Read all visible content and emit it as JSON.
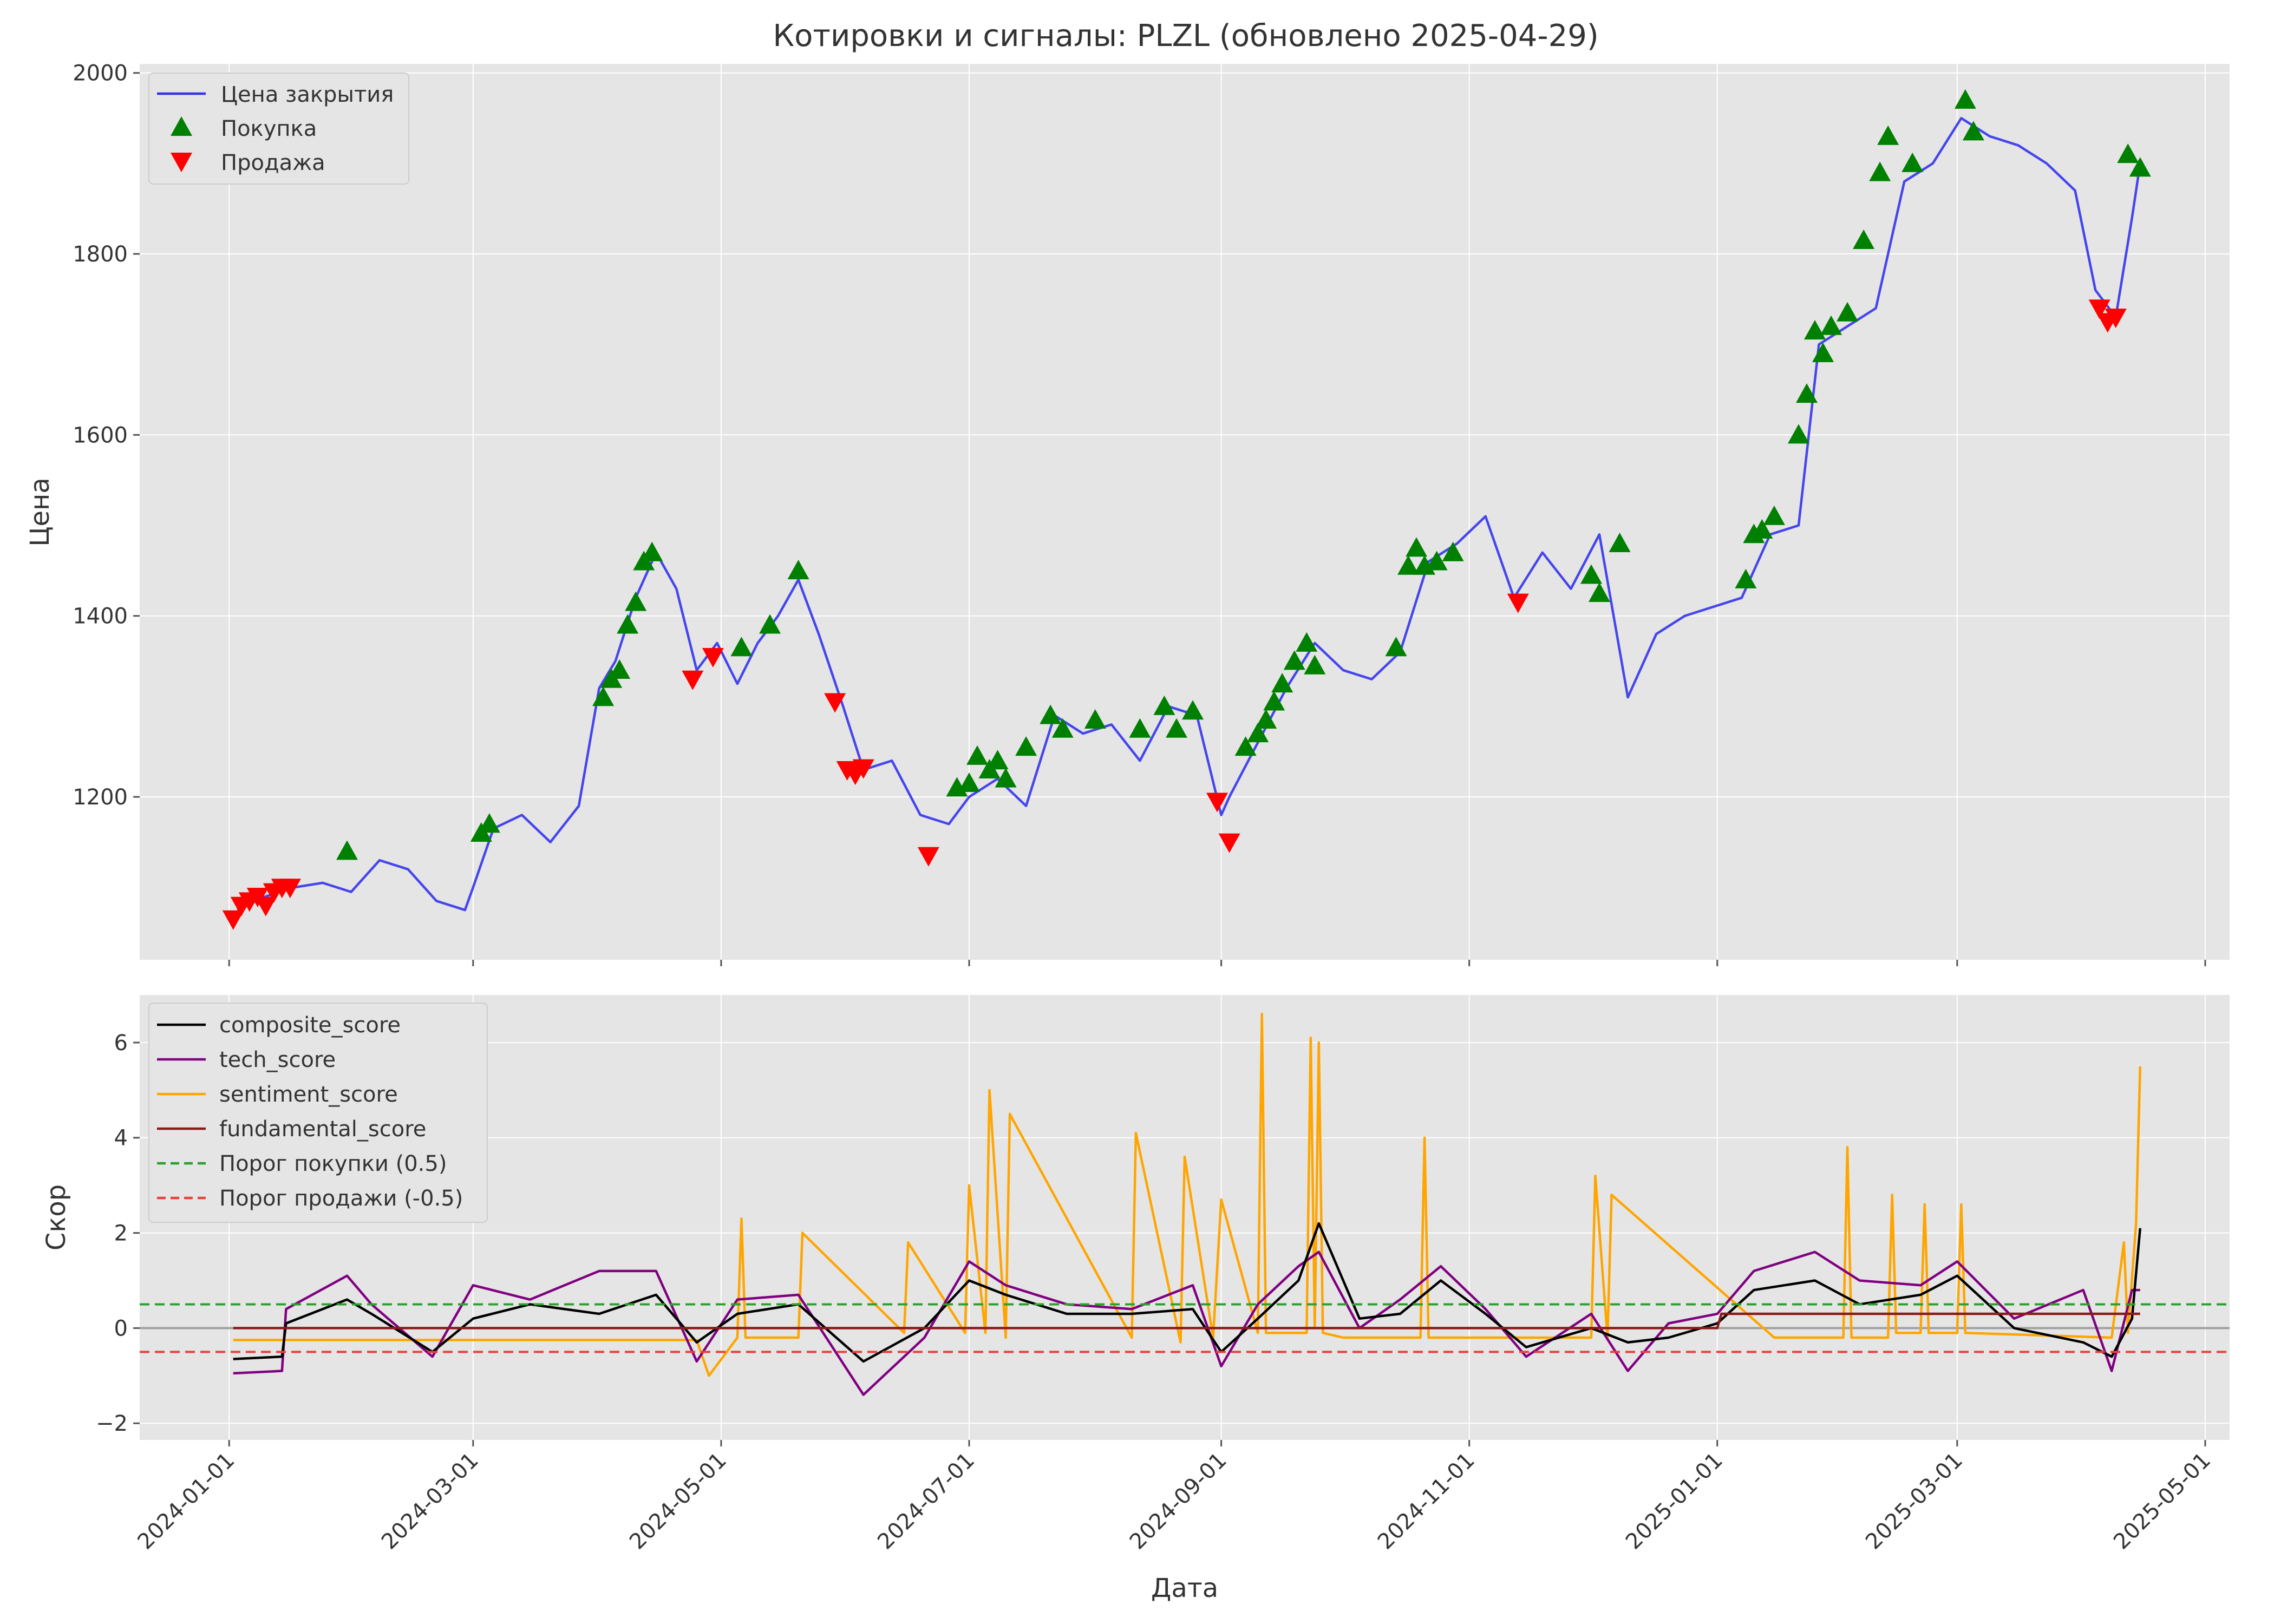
{
  "chart_data": [
    {
      "type": "line",
      "title": "Котировки и сигналы: PLZL (обновлено 2025-04-29)",
      "xlabel": "",
      "ylabel": "Цена",
      "ylim": [
        1020,
        2010
      ],
      "yticks": [
        1200,
        1400,
        1600,
        1800,
        2000
      ],
      "grid": true,
      "legend": "top-left",
      "colors": {
        "price": "#3333ee",
        "buy": "#008000",
        "sell": "#ff0000",
        "background": "#e5e5e5"
      },
      "series": [
        {
          "name": "Цена закрытия",
          "x": [
            "2024-01-03",
            "2024-01-10",
            "2024-01-17",
            "2024-01-24",
            "2024-01-31",
            "2024-02-07",
            "2024-02-14",
            "2024-02-21",
            "2024-02-28",
            "2024-03-01",
            "2024-03-06",
            "2024-03-13",
            "2024-03-20",
            "2024-03-27",
            "2024-04-01",
            "2024-04-05",
            "2024-04-10",
            "2024-04-15",
            "2024-04-20",
            "2024-04-25",
            "2024-04-30",
            "2024-05-05",
            "2024-05-10",
            "2024-05-15",
            "2024-05-20",
            "2024-05-25",
            "2024-05-31",
            "2024-06-05",
            "2024-06-12",
            "2024-06-19",
            "2024-06-26",
            "2024-07-01",
            "2024-07-08",
            "2024-07-15",
            "2024-07-22",
            "2024-07-29",
            "2024-08-05",
            "2024-08-12",
            "2024-08-19",
            "2024-08-26",
            "2024-09-01",
            "2024-09-03",
            "2024-09-10",
            "2024-09-17",
            "2024-09-24",
            "2024-10-01",
            "2024-10-08",
            "2024-10-15",
            "2024-10-22",
            "2024-10-29",
            "2024-11-05",
            "2024-11-12",
            "2024-11-19",
            "2024-11-26",
            "2024-12-03",
            "2024-12-10",
            "2024-12-17",
            "2024-12-24",
            "2024-12-31",
            "2025-01-07",
            "2025-01-14",
            "2025-01-21",
            "2025-01-26",
            "2025-02-02",
            "2025-02-09",
            "2025-02-16",
            "2025-02-23",
            "2025-03-02",
            "2025-03-09",
            "2025-03-16",
            "2025-03-23",
            "2025-03-30",
            "2025-04-04",
            "2025-04-09",
            "2025-04-13",
            "2025-04-15"
          ],
          "y": [
            1075,
            1090,
            1100,
            1105,
            1095,
            1130,
            1120,
            1085,
            1075,
            1100,
            1165,
            1180,
            1150,
            1190,
            1320,
            1350,
            1420,
            1470,
            1430,
            1340,
            1370,
            1325,
            1370,
            1400,
            1440,
            1380,
            1300,
            1230,
            1240,
            1180,
            1170,
            1200,
            1220,
            1190,
            1290,
            1270,
            1280,
            1240,
            1300,
            1290,
            1180,
            1200,
            1260,
            1320,
            1370,
            1340,
            1330,
            1360,
            1460,
            1480,
            1510,
            1420,
            1470,
            1430,
            1490,
            1310,
            1380,
            1400,
            1410,
            1420,
            1490,
            1500,
            1700,
            1720,
            1740,
            1880,
            1900,
            1950,
            1930,
            1920,
            1900,
            1870,
            1760,
            1730,
            1840,
            1900
          ]
        },
        {
          "name": "Покупка",
          "x": [
            "2024-01-30",
            "2024-03-03",
            "2024-03-05",
            "2024-04-02",
            "2024-04-04",
            "2024-04-06",
            "2024-04-08",
            "2024-04-10",
            "2024-04-12",
            "2024-04-14",
            "2024-05-06",
            "2024-05-13",
            "2024-05-20",
            "2024-06-28",
            "2024-07-01",
            "2024-07-03",
            "2024-07-06",
            "2024-07-08",
            "2024-07-10",
            "2024-07-15",
            "2024-07-21",
            "2024-07-24",
            "2024-08-01",
            "2024-08-12",
            "2024-08-18",
            "2024-08-21",
            "2024-08-25",
            "2024-09-07",
            "2024-09-10",
            "2024-09-12",
            "2024-09-14",
            "2024-09-16",
            "2024-09-19",
            "2024-09-22",
            "2024-09-24",
            "2024-10-14",
            "2024-10-17",
            "2024-10-19",
            "2024-10-21",
            "2024-10-24",
            "2024-10-28",
            "2024-12-01",
            "2024-12-03",
            "2024-12-08",
            "2025-01-08",
            "2025-01-10",
            "2025-01-12",
            "2025-01-15",
            "2025-01-21",
            "2025-01-23",
            "2025-01-25",
            "2025-01-27",
            "2025-01-29",
            "2025-02-02",
            "2025-02-06",
            "2025-02-10",
            "2025-02-12",
            "2025-02-18",
            "2025-03-03",
            "2025-03-05",
            "2025-04-12",
            "2025-04-15"
          ],
          "y": [
            1140,
            1160,
            1170,
            1310,
            1330,
            1340,
            1390,
            1415,
            1460,
            1470,
            1365,
            1390,
            1450,
            1210,
            1215,
            1245,
            1230,
            1240,
            1220,
            1255,
            1290,
            1275,
            1285,
            1275,
            1300,
            1275,
            1295,
            1255,
            1270,
            1285,
            1305,
            1325,
            1350,
            1370,
            1345,
            1365,
            1455,
            1475,
            1455,
            1460,
            1470,
            1445,
            1425,
            1480,
            1440,
            1490,
            1495,
            1510,
            1600,
            1645,
            1715,
            1690,
            1720,
            1735,
            1815,
            1890,
            1930,
            1900,
            1970,
            1935,
            1910,
            1895
          ]
        },
        {
          "name": "Продажа",
          "x": [
            "2024-01-02",
            "2024-01-04",
            "2024-01-06",
            "2024-01-08",
            "2024-01-10",
            "2024-01-12",
            "2024-01-14",
            "2024-01-16",
            "2024-04-24",
            "2024-04-29",
            "2024-05-29",
            "2024-06-01",
            "2024-06-03",
            "2024-06-05",
            "2024-06-21",
            "2024-08-31",
            "2024-09-03",
            "2024-11-13",
            "2025-04-05",
            "2025-04-07",
            "2025-04-09"
          ],
          "y": [
            1065,
            1080,
            1085,
            1090,
            1080,
            1095,
            1100,
            1100,
            1330,
            1355,
            1305,
            1230,
            1225,
            1232,
            1135,
            1195,
            1150,
            1415,
            1740,
            1725,
            1730
          ]
        }
      ]
    },
    {
      "type": "line",
      "title": "",
      "xlabel": "Дата",
      "ylabel": "Скор",
      "ylim": [
        -2.35,
        7.0
      ],
      "yticks": [
        -2,
        0,
        2,
        4,
        6
      ],
      "xticks": [
        "2024-01-01",
        "2024-03-01",
        "2024-05-01",
        "2024-07-01",
        "2024-09-01",
        "2024-11-01",
        "2025-01-01",
        "2025-03-01",
        "2025-05-01"
      ],
      "xlim": [
        "2023-12-10",
        "2025-05-07"
      ],
      "grid": true,
      "legend": "top-left",
      "zero_line": 0,
      "colors": {
        "composite": "#000000",
        "tech": "#800080",
        "sentiment": "#ffa500",
        "fundamental": "#8b1a1a",
        "buy_threshold": "#2ca02c",
        "sell_threshold": "#e8403a",
        "zero": "#a0a0a0"
      },
      "series": [
        {
          "name": "composite_score",
          "x": [
            "2024-01-02",
            "2024-01-14",
            "2024-01-15",
            "2024-01-30",
            "2024-02-05",
            "2024-02-20",
            "2024-03-01",
            "2024-03-15",
            "2024-04-01",
            "2024-04-15",
            "2024-04-25",
            "2024-05-05",
            "2024-05-20",
            "2024-06-05",
            "2024-06-20",
            "2024-07-01",
            "2024-07-10",
            "2024-07-25",
            "2024-08-10",
            "2024-08-25",
            "2024-09-01",
            "2024-09-10",
            "2024-09-20",
            "2024-09-25",
            "2024-10-05",
            "2024-10-15",
            "2024-10-25",
            "2024-11-05",
            "2024-11-15",
            "2024-12-01",
            "2024-12-10",
            "2024-12-20",
            "2025-01-01",
            "2025-01-10",
            "2025-01-25",
            "2025-02-05",
            "2025-02-20",
            "2025-03-01",
            "2025-03-15",
            "2025-04-01",
            "2025-04-08",
            "2025-04-13",
            "2025-04-15"
          ],
          "y": [
            -0.65,
            -0.6,
            0.1,
            0.6,
            0.3,
            -0.5,
            0.2,
            0.5,
            0.3,
            0.7,
            -0.3,
            0.3,
            0.5,
            -0.7,
            0.0,
            1.0,
            0.7,
            0.3,
            0.3,
            0.4,
            -0.5,
            0.2,
            1.0,
            2.2,
            0.2,
            0.3,
            1.0,
            0.3,
            -0.4,
            0.0,
            -0.3,
            -0.2,
            0.1,
            0.8,
            1.0,
            0.5,
            0.7,
            1.1,
            0.0,
            -0.3,
            -0.6,
            0.2,
            2.1
          ]
        },
        {
          "name": "tech_score",
          "x": [
            "2024-01-02",
            "2024-01-14",
            "2024-01-15",
            "2024-01-30",
            "2024-02-05",
            "2024-02-20",
            "2024-03-01",
            "2024-03-15",
            "2024-04-01",
            "2024-04-15",
            "2024-04-25",
            "2024-05-05",
            "2024-05-20",
            "2024-06-05",
            "2024-06-20",
            "2024-07-01",
            "2024-07-10",
            "2024-07-25",
            "2024-08-10",
            "2024-08-25",
            "2024-09-01",
            "2024-09-10",
            "2024-09-20",
            "2024-09-25",
            "2024-10-05",
            "2024-10-15",
            "2024-10-25",
            "2024-11-05",
            "2024-11-15",
            "2024-12-01",
            "2024-12-10",
            "2024-12-20",
            "2025-01-01",
            "2025-01-10",
            "2025-01-25",
            "2025-02-05",
            "2025-02-20",
            "2025-03-01",
            "2025-03-15",
            "2025-04-01",
            "2025-04-08",
            "2025-04-13",
            "2025-04-15"
          ],
          "y": [
            -0.95,
            -0.9,
            0.4,
            1.1,
            0.5,
            -0.6,
            0.9,
            0.6,
            1.2,
            1.2,
            -0.7,
            0.6,
            0.7,
            -1.4,
            -0.2,
            1.4,
            0.9,
            0.5,
            0.4,
            0.9,
            -0.8,
            0.5,
            1.3,
            1.6,
            0.0,
            0.6,
            1.3,
            0.4,
            -0.6,
            0.3,
            -0.9,
            0.1,
            0.3,
            1.2,
            1.6,
            1.0,
            0.9,
            1.4,
            0.2,
            0.8,
            -0.9,
            0.8,
            0.8
          ]
        },
        {
          "name": "sentiment_score",
          "x": [
            "2024-01-02",
            "2024-04-25",
            "2024-04-28",
            "2024-05-05",
            "2024-05-06",
            "2024-05-07",
            "2024-05-20",
            "2024-05-21",
            "2024-06-15",
            "2024-06-16",
            "2024-06-30",
            "2024-07-01",
            "2024-07-05",
            "2024-07-06",
            "2024-07-10",
            "2024-07-11",
            "2024-08-10",
            "2024-08-11",
            "2024-08-22",
            "2024-08-23",
            "2024-08-30",
            "2024-09-01",
            "2024-09-10",
            "2024-09-11",
            "2024-09-12",
            "2024-09-22",
            "2024-09-23",
            "2024-09-24",
            "2024-09-25",
            "2024-09-26",
            "2024-10-01",
            "2024-10-20",
            "2024-10-21",
            "2024-10-22",
            "2024-12-01",
            "2024-12-02",
            "2024-12-05",
            "2024-12-06",
            "2025-01-15",
            "2025-02-01",
            "2025-02-02",
            "2025-02-03",
            "2025-02-12",
            "2025-02-13",
            "2025-02-14",
            "2025-02-20",
            "2025-02-21",
            "2025-02-22",
            "2025-03-01",
            "2025-03-02",
            "2025-03-03",
            "2025-04-08",
            "2025-04-11",
            "2025-04-12",
            "2025-04-14",
            "2025-04-15"
          ],
          "y": [
            -0.25,
            -0.25,
            -1.0,
            -0.2,
            2.3,
            -0.2,
            -0.2,
            2.0,
            -0.1,
            1.8,
            -0.1,
            3.0,
            -0.1,
            5.0,
            -0.2,
            4.5,
            -0.2,
            4.1,
            -0.3,
            3.6,
            -0.2,
            2.7,
            -0.1,
            6.6,
            -0.1,
            -0.1,
            6.1,
            0.0,
            6.0,
            -0.1,
            -0.2,
            -0.2,
            4.0,
            -0.2,
            -0.2,
            3.2,
            -0.2,
            2.8,
            -0.2,
            -0.2,
            3.8,
            -0.2,
            -0.2,
            2.8,
            -0.1,
            -0.1,
            2.6,
            -0.1,
            -0.1,
            2.6,
            -0.1,
            -0.2,
            1.8,
            -0.1,
            2.2,
            5.5
          ]
        },
        {
          "name": "fundamental_score",
          "x": [
            "2024-01-02",
            "2025-01-01",
            "2025-01-02",
            "2025-04-15"
          ],
          "y": [
            0.0,
            0.0,
            0.3,
            0.3
          ]
        },
        {
          "name": "Порог покупки (0.5)",
          "x": [
            "2023-12-10",
            "2025-05-07"
          ],
          "y": [
            0.5,
            0.5
          ]
        },
        {
          "name": "Порог продажи (-0.5)",
          "x": [
            "2023-12-10",
            "2025-05-07"
          ],
          "y": [
            -0.5,
            -0.5
          ]
        }
      ]
    }
  ]
}
